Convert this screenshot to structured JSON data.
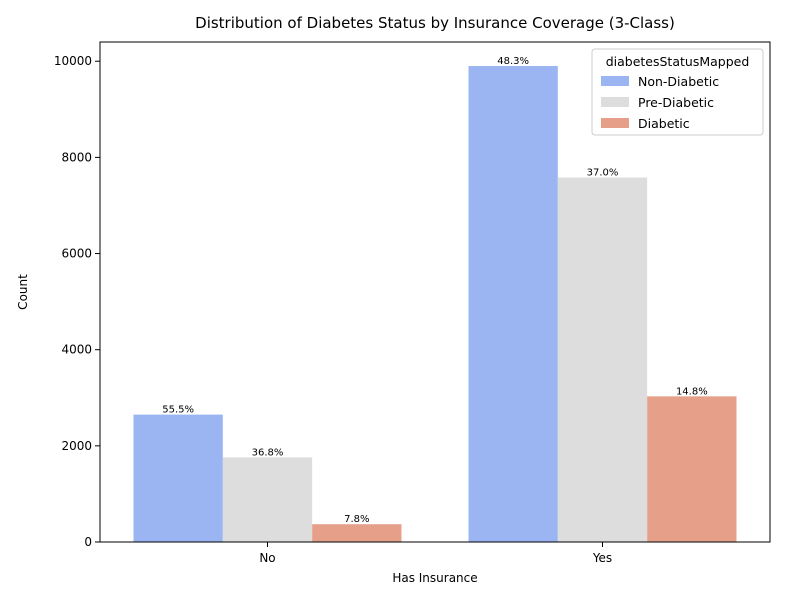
{
  "chart_data": {
    "type": "bar",
    "title": "Distribution of Diabetes Status by Insurance Coverage (3-Class)",
    "xlabel": "Has Insurance",
    "ylabel": "Count",
    "categories": [
      "No",
      "Yes"
    ],
    "ylim": [
      0,
      10400
    ],
    "yticks": [
      0,
      2000,
      4000,
      6000,
      8000,
      10000
    ],
    "series": [
      {
        "name": "Non-Diabetic",
        "color": "#9bb5f2",
        "values": [
          2650,
          9900
        ],
        "labels": [
          "55.5%",
          "48.3%"
        ]
      },
      {
        "name": "Pre-Diabetic",
        "color": "#dddddd",
        "values": [
          1760,
          7580
        ],
        "labels": [
          "36.8%",
          "37.0%"
        ]
      },
      {
        "name": "Diabetic",
        "color": "#e6a08a",
        "values": [
          370,
          3030
        ],
        "labels": [
          "7.8%",
          "14.8%"
        ]
      }
    ],
    "legend": {
      "title": "diabetesStatusMapped",
      "placement": "top-right"
    },
    "grid": false
  }
}
